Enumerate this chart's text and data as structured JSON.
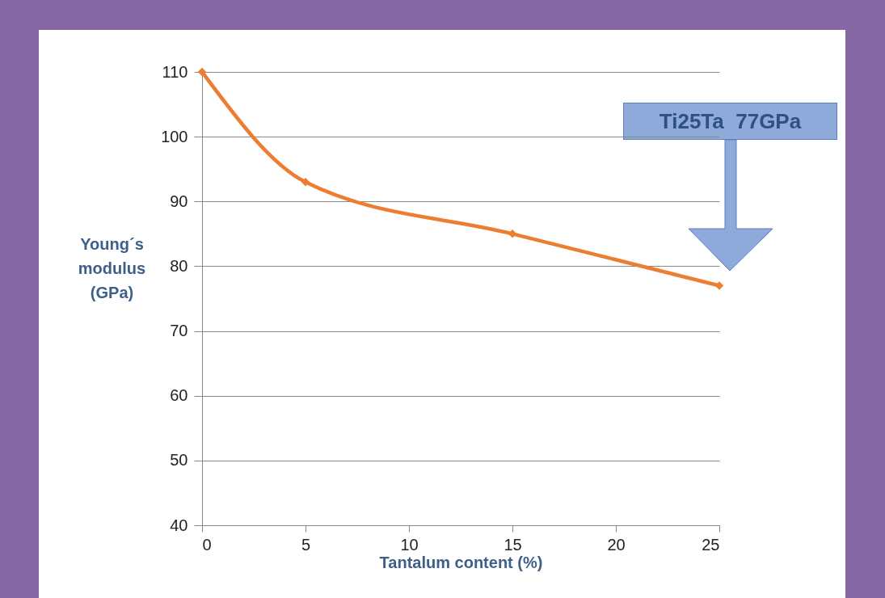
{
  "chart_data": {
    "type": "line",
    "xlabel": "Tantalum content (%)",
    "ylabel": "Young´s modulus (GPa)",
    "x": [
      0,
      5,
      15,
      25
    ],
    "series": [
      {
        "color": "#ed7d31",
        "values": [
          110,
          93,
          85,
          77
        ]
      }
    ],
    "xlim": [
      0,
      25
    ],
    "xticks": [
      0,
      5,
      10,
      15,
      20,
      25
    ],
    "ylim": [
      40,
      110
    ],
    "yticks": [
      40,
      50,
      60,
      70,
      80,
      90,
      100,
      110
    ],
    "grid": "y",
    "marker": "diamond",
    "line_style": "solid",
    "annotations": [
      "Ti25Ta  77GPa"
    ]
  }
}
